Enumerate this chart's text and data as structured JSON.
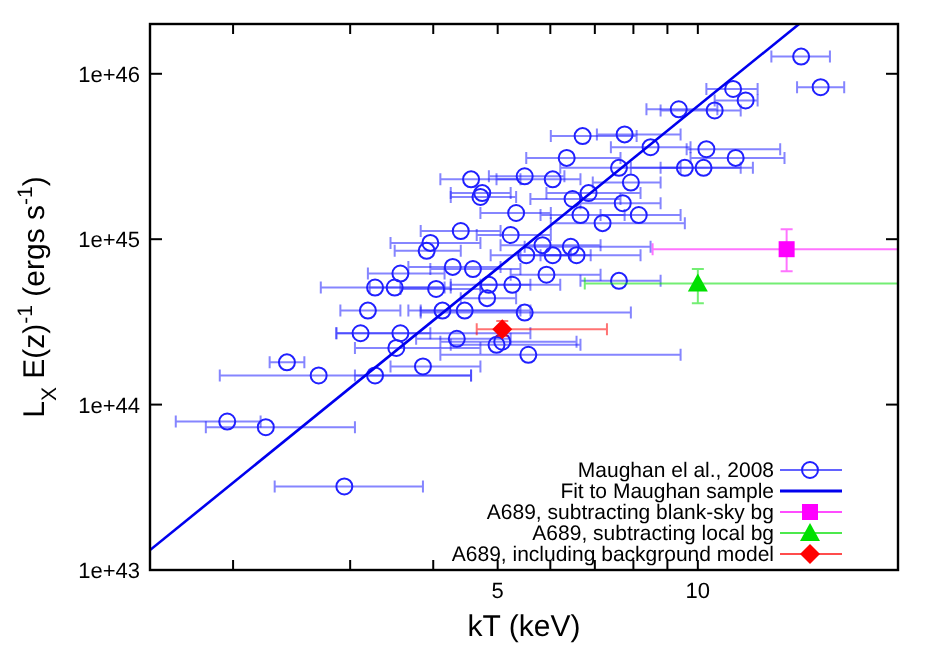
{
  "chart_data": {
    "type": "scatter",
    "xlabel": "kT (keV)",
    "ylabel": "L$_{X}$ E(z)$^{-1}$ (ergs s$^{-1}$)",
    "log": "xy",
    "legend": "bottom right",
    "xlim": [
      1.5,
      20
    ],
    "xticks": [
      {
        "value": 2,
        "label": null
      },
      {
        "value": 3,
        "label": null
      },
      {
        "value": 4,
        "label": null
      },
      5,
      {
        "value": 6,
        "label": null
      },
      {
        "value": 7,
        "label": null
      },
      {
        "value": 8,
        "label": null
      },
      {
        "value": 9,
        "label": null
      },
      10
    ],
    "ylim": [
      1e+43,
      2e+46
    ],
    "yticks": [
      {
        "value": 1e+43,
        "label": "1e+43"
      },
      {
        "value": 1e+44,
        "label": "1e+44"
      },
      {
        "value": 1e+45,
        "label": "1e+45"
      },
      {
        "value": 1e+46,
        "label": "1e+46"
      }
    ],
    "series": [
      {
        "name": "Maughan el al., 2008",
        "marker": "circle",
        "color": "#2020ff",
        "x": [
          1.96,
          2.24,
          2.94,
          2.41,
          2.69,
          3.27,
          3.86,
          3.11,
          3.57,
          3.52,
          4.34,
          4.98,
          3.19,
          4.13,
          4.46,
          5.08,
          5.56,
          5.49,
          4.82,
          7.61,
          14.3,
          15.3,
          11.3,
          11.8,
          10.6,
          9.36,
          6.71,
          7.76,
          8.49,
          10.3,
          11.4,
          6.35,
          10.2,
          9.56,
          7.61,
          5.49,
          6.05,
          7.93,
          6.85,
          4.71,
          6.48,
          7.71,
          8.15,
          6.66,
          5.33,
          7.19,
          5.84,
          6.44,
          6.57,
          5.52,
          5.23,
          5.92,
          5.26,
          4.56,
          4.74,
          3.96,
          3.91,
          4.4,
          4.28,
          3.57,
          3.27,
          3.5,
          4.04,
          4.59,
          6.05,
          4.85
        ],
        "values": [
          7.9e+43,
          7.3e+43,
          3.2e+43,
          1.8e+44,
          1.5e+44,
          1.5e+44,
          1.7e+44,
          2.7e+44,
          2.7e+44,
          2.2e+44,
          2.5e+44,
          2.3e+44,
          3.7e+44,
          3.7e+44,
          3.7e+44,
          2.4e+44,
          2e+44,
          3.6e+44,
          4.4e+44,
          5.6e+44,
          1.27e+46,
          8.3e+45,
          8.1e+45,
          6.9e+45,
          6e+45,
          6.1e+45,
          4.2e+45,
          4.3e+45,
          3.6e+45,
          3.5e+45,
          3.1e+45,
          3.1e+45,
          2.7e+45,
          2.7e+45,
          2.7e+45,
          2.4e+45,
          2.3e+45,
          2.2e+45,
          1.9e+45,
          1.8e+45,
          1.75e+45,
          1.65e+45,
          1.4e+45,
          1.4e+45,
          1.44e+45,
          1.25e+45,
          9.2e+44,
          9e+44,
          8e+44,
          8e+44,
          1.06e+45,
          6.1e+44,
          5.3e+44,
          2.3e+45,
          1.9e+45,
          9.5e+44,
          8.5e+44,
          1.12e+45,
          6.8e+44,
          6.2e+44,
          5.1e+44,
          5.1e+44,
          5e+44,
          6.6e+44,
          8e+44,
          5.3e+44
        ],
        "xerrors": [
          [
            1.64,
            2.2
          ],
          [
            1.82,
            3.05
          ],
          [
            2.31,
            3.86
          ],
          [
            2.27,
            2.56
          ],
          [
            1.91,
            4.56
          ],
          [
            3.05,
            4.56
          ],
          [
            3.45,
            4.71
          ],
          [
            2.86,
            3.96
          ],
          [
            2.86,
            5.6
          ],
          [
            3.05,
            4.71
          ],
          [
            3.77,
            5.23
          ],
          [
            4.25,
            6.66
          ],
          [
            2.9,
            3.57
          ],
          [
            3.67,
            5.41
          ],
          [
            3.83,
            5.6
          ],
          [
            4.1,
            6.57
          ],
          [
            4.1,
            9.42
          ],
          [
            3.83,
            7.93
          ],
          [
            4.4,
            5.33
          ],
          [
            6.66,
            8.79
          ],
          [
            12.9,
            15.8
          ],
          [
            14.1,
            16.6
          ],
          [
            10.3,
            12.3
          ],
          [
            10.6,
            12.3
          ],
          [
            8.79,
            11.6
          ],
          [
            8.37,
            10.7
          ],
          [
            6.01,
            8.09
          ],
          [
            7.05,
            9.42
          ],
          [
            7.4,
            9.75
          ],
          [
            9.62,
            13.3
          ],
          [
            9.75,
            13.5
          ],
          [
            5.52,
            7.65
          ],
          [
            8.79,
            12.1
          ],
          [
            7.93,
            11.6
          ],
          [
            6.21,
            9.42
          ],
          [
            4.85,
            6.3
          ],
          [
            4.98,
            6.66
          ],
          [
            6.95,
            8.79
          ],
          [
            5.92,
            8.2
          ],
          [
            4.25,
            5.33
          ],
          [
            5.6,
            7.65
          ],
          [
            6.66,
            8.79
          ],
          [
            7.14,
            9.42
          ],
          [
            5.8,
            7.76
          ],
          [
            4.71,
            6.01
          ],
          [
            6.01,
            9.56
          ],
          [
            5.05,
            7.14
          ],
          [
            5.49,
            8.49
          ],
          [
            5.8,
            8.2
          ],
          [
            4.88,
            6.44
          ],
          [
            4.65,
            6.01
          ],
          [
            5.23,
            7.14
          ],
          [
            4.71,
            6.21
          ],
          [
            4.1,
            5.41
          ],
          [
            4.25,
            5.23
          ],
          [
            3.45,
            4.71
          ],
          [
            3.5,
            4.4
          ],
          [
            3.83,
            5.05
          ],
          [
            3.67,
            5.05
          ],
          [
            3.19,
            4.16
          ],
          [
            2.71,
            4.25
          ],
          [
            3.21,
            4.16
          ],
          [
            3.57,
            4.71
          ],
          [
            3.96,
            5.41
          ],
          [
            5.41,
            6.9
          ],
          [
            4.25,
            5.6
          ]
        ]
      },
      {
        "name": "Fit to Maughan sample",
        "type": "line",
        "color": "#0000ee",
        "x": [
          1.5,
          14.2
        ],
        "values": [
          1.32e+43,
          2e+46
        ]
      },
      {
        "name": "A689, subtracting blank-sky bg",
        "marker": "square",
        "color": "#ff00ff",
        "x": [
          13.6
        ],
        "values": [
          8.7e+44
        ],
        "xerrors": [
          [
            8.55,
            20
          ]
        ],
        "errors": [
          [
            6.4e+44,
            1.15e+45
          ]
        ]
      },
      {
        "name": "A689, subtracting local bg",
        "marker": "triangle",
        "color": "#00e000",
        "x": [
          10
        ],
        "values": [
          5.4e+44
        ],
        "xerrors": [
          [
            6.76,
            20
          ]
        ],
        "errors": [
          [
            4.1e+44,
            6.6e+44
          ]
        ]
      },
      {
        "name": "A689, including background model",
        "marker": "diamond",
        "color": "#ff0000",
        "x": [
          5.08
        ],
        "values": [
          2.85e+44
        ],
        "xerrors": [
          [
            4.65,
            7.3
          ]
        ],
        "errors": [
          [
            2.6e+44,
            3.2e+44
          ]
        ]
      }
    ]
  }
}
